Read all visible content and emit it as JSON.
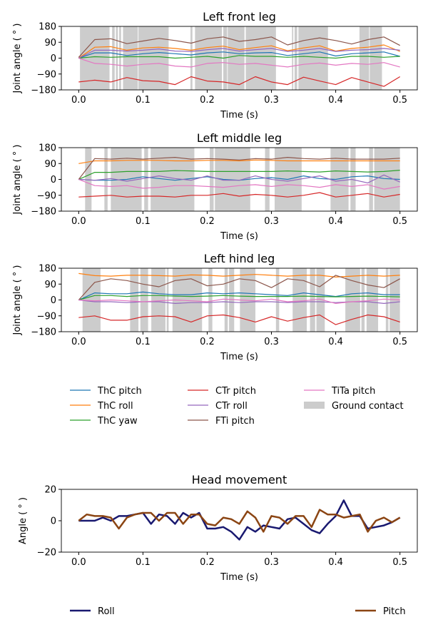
{
  "chart_data": [
    {
      "type": "line",
      "title": "Left front leg",
      "xlabel": "Time (s)",
      "ylabel": "Joint angle ( ° )",
      "xlim": [
        -0.027,
        0.527
      ],
      "ylim": [
        -180,
        180
      ],
      "xticks": [
        "0.0",
        "0.1",
        "0.2",
        "0.3",
        "0.4",
        "0.5"
      ],
      "yticks": [
        "180",
        "90",
        "0",
        "−90",
        "−180"
      ],
      "x": [
        0,
        0.025,
        0.05,
        0.075,
        0.1,
        0.125,
        0.15,
        0.175,
        0.2,
        0.225,
        0.25,
        0.275,
        0.3,
        0.325,
        0.35,
        0.375,
        0.4,
        0.425,
        0.45,
        0.475,
        0.5
      ],
      "series": [
        {
          "name": "ThC pitch",
          "values": [
            0,
            30,
            30,
            15,
            25,
            32,
            25,
            18,
            30,
            35,
            25,
            30,
            32,
            15,
            25,
            35,
            12,
            25,
            30,
            35,
            10
          ]
        },
        {
          "name": "ThC roll",
          "values": [
            0,
            62,
            65,
            45,
            58,
            62,
            55,
            45,
            60,
            68,
            48,
            60,
            70,
            42,
            58,
            70,
            40,
            55,
            62,
            75,
            38
          ]
        },
        {
          "name": "ThC yaw",
          "values": [
            0,
            8,
            5,
            8,
            8,
            8,
            0,
            5,
            10,
            0,
            15,
            10,
            10,
            5,
            10,
            5,
            0,
            10,
            10,
            5,
            10
          ]
        },
        {
          "name": "CTr pitch",
          "values": [
            -135,
            -125,
            -135,
            -110,
            -128,
            -132,
            -150,
            -105,
            -130,
            -135,
            -150,
            -105,
            -135,
            -150,
            -108,
            -130,
            -150,
            -110,
            -135,
            -160,
            -105
          ]
        },
        {
          "name": "CTr roll",
          "values": [
            0,
            45,
            45,
            40,
            45,
            52,
            40,
            38,
            48,
            55,
            40,
            48,
            55,
            38,
            45,
            55,
            38,
            45,
            48,
            55,
            45
          ]
        },
        {
          "name": "FTi pitch",
          "values": [
            5,
            105,
            110,
            82,
            97,
            112,
            100,
            85,
            110,
            120,
            95,
            105,
            120,
            75,
            100,
            115,
            100,
            80,
            105,
            120,
            72
          ]
        },
        {
          "name": "TiTa pitch",
          "values": [
            0,
            -30,
            -35,
            -45,
            -35,
            -30,
            -45,
            -50,
            -30,
            -25,
            -35,
            -30,
            -40,
            -50,
            -35,
            -28,
            -40,
            -30,
            -35,
            -25,
            -50
          ]
        }
      ],
      "ground_contact": [
        [
          0.002,
          0.048
        ],
        [
          0.052,
          0.056
        ],
        [
          0.058,
          0.061
        ],
        [
          0.063,
          0.066
        ],
        [
          0.069,
          0.092
        ],
        [
          0.093,
          0.14
        ],
        [
          0.174,
          0.177
        ],
        [
          0.181,
          0.223
        ],
        [
          0.225,
          0.231
        ],
        [
          0.232,
          0.258
        ],
        [
          0.26,
          0.307
        ],
        [
          0.332,
          0.334
        ],
        [
          0.336,
          0.34
        ],
        [
          0.342,
          0.388
        ],
        [
          0.437,
          0.452
        ],
        [
          0.453,
          0.472
        ]
      ]
    },
    {
      "type": "line",
      "title": "Left middle leg",
      "xlabel": "Time (s)",
      "ylabel": "Joint angle ( ° )",
      "xlim": [
        -0.027,
        0.527
      ],
      "ylim": [
        -180,
        180
      ],
      "xticks": [
        "0.0",
        "0.1",
        "0.2",
        "0.3",
        "0.4",
        "0.5"
      ],
      "yticks": [
        "180",
        "90",
        "0",
        "−90",
        "−180"
      ],
      "x": [
        0,
        0.025,
        0.05,
        0.075,
        0.1,
        0.125,
        0.15,
        0.175,
        0.2,
        0.225,
        0.25,
        0.275,
        0.3,
        0.325,
        0.35,
        0.375,
        0.4,
        0.425,
        0.45,
        0.475,
        0.5
      ],
      "series": [
        {
          "name": "ThC pitch",
          "values": [
            0,
            -5,
            -5,
            0,
            15,
            5,
            -5,
            5,
            15,
            0,
            -5,
            5,
            10,
            0,
            20,
            5,
            0,
            15,
            20,
            5,
            0
          ]
        },
        {
          "name": "ThC roll",
          "values": [
            90,
            105,
            105,
            108,
            108,
            108,
            105,
            105,
            108,
            108,
            105,
            110,
            108,
            105,
            105,
            105,
            105,
            105,
            105,
            105,
            105
          ]
        },
        {
          "name": "ThC yaw",
          "values": [
            0,
            40,
            40,
            45,
            45,
            45,
            50,
            48,
            45,
            45,
            45,
            45,
            45,
            48,
            45,
            42,
            48,
            45,
            42,
            45,
            52
          ]
        },
        {
          "name": "CTr pitch",
          "values": [
            -100,
            -95,
            -90,
            -100,
            -95,
            -95,
            -100,
            -90,
            -90,
            -80,
            -95,
            -85,
            -90,
            -100,
            -90,
            -75,
            -100,
            -90,
            -80,
            -100,
            -85
          ]
        },
        {
          "name": "CTr roll",
          "values": [
            0,
            -5,
            5,
            -10,
            5,
            20,
            5,
            -5,
            20,
            -5,
            -5,
            20,
            0,
            -10,
            5,
            20,
            -10,
            0,
            -20,
            25,
            -15
          ]
        },
        {
          "name": "FTi pitch",
          "values": [
            0,
            118,
            115,
            120,
            115,
            120,
            125,
            115,
            118,
            115,
            110,
            118,
            115,
            125,
            118,
            115,
            120,
            115,
            115,
            115,
            120
          ]
        },
        {
          "name": "TiTa pitch",
          "values": [
            0,
            -35,
            -40,
            -35,
            -50,
            -45,
            -35,
            -35,
            -40,
            -45,
            -35,
            -30,
            -40,
            -30,
            -35,
            -45,
            -30,
            -40,
            -30,
            -55,
            -40
          ]
        }
      ],
      "ground_contact": [
        [
          0.01,
          0.02
        ],
        [
          0.04,
          0.045
        ],
        [
          0.05,
          0.098
        ],
        [
          0.102,
          0.108
        ],
        [
          0.112,
          0.18
        ],
        [
          0.204,
          0.21
        ],
        [
          0.212,
          0.267
        ],
        [
          0.29,
          0.297
        ],
        [
          0.305,
          0.347
        ],
        [
          0.392,
          0.42
        ],
        [
          0.423,
          0.431
        ],
        [
          0.452,
          0.458
        ],
        [
          0.46,
          0.5
        ]
      ]
    },
    {
      "type": "line",
      "title": "Left hind leg",
      "xlabel": "Time (s)",
      "ylabel": "Joint angle ( ° )",
      "xlim": [
        -0.027,
        0.527
      ],
      "ylim": [
        -180,
        180
      ],
      "xticks": [
        "0.0",
        "0.1",
        "0.2",
        "0.3",
        "0.4",
        "0.5"
      ],
      "yticks": [
        "180",
        "90",
        "0",
        "−90",
        "−180"
      ],
      "x": [
        0,
        0.025,
        0.05,
        0.075,
        0.1,
        0.125,
        0.15,
        0.175,
        0.2,
        0.225,
        0.25,
        0.275,
        0.3,
        0.325,
        0.35,
        0.375,
        0.4,
        0.425,
        0.45,
        0.475,
        0.5
      ],
      "series": [
        {
          "name": "ThC pitch",
          "values": [
            0,
            40,
            35,
            35,
            45,
            35,
            30,
            30,
            40,
            35,
            40,
            35,
            30,
            25,
            40,
            30,
            20,
            35,
            40,
            30,
            30
          ]
        },
        {
          "name": "ThC roll",
          "values": [
            150,
            138,
            135,
            140,
            140,
            138,
            135,
            142,
            140,
            135,
            140,
            145,
            140,
            135,
            140,
            140,
            130,
            135,
            140,
            135,
            140
          ]
        },
        {
          "name": "ThC yaw",
          "values": [
            0,
            25,
            25,
            20,
            25,
            25,
            22,
            20,
            22,
            25,
            22,
            20,
            20,
            20,
            22,
            20,
            18,
            20,
            22,
            20,
            18
          ]
        },
        {
          "name": "CTr pitch",
          "values": [
            -100,
            -90,
            -115,
            -115,
            -95,
            -90,
            -95,
            -125,
            -90,
            -85,
            -100,
            -125,
            -95,
            -120,
            -100,
            -85,
            -140,
            -110,
            -85,
            -95,
            -125
          ]
        },
        {
          "name": "CTr roll",
          "values": [
            0,
            -10,
            -10,
            -15,
            -10,
            -10,
            -20,
            -15,
            -15,
            -10,
            -15,
            -10,
            -10,
            -15,
            -10,
            -10,
            -15,
            -10,
            -10,
            -20,
            -10
          ]
        },
        {
          "name": "FTi pitch",
          "values": [
            0,
            100,
            120,
            110,
            90,
            75,
            110,
            120,
            80,
            90,
            120,
            110,
            70,
            120,
            110,
            75,
            140,
            110,
            85,
            70,
            120
          ]
        },
        {
          "name": "TiTa pitch",
          "values": [
            0,
            -5,
            0,
            -5,
            -10,
            -5,
            0,
            -5,
            -10,
            5,
            0,
            -5,
            5,
            -10,
            -5,
            5,
            -20,
            -10,
            -5,
            5,
            0
          ]
        }
      ],
      "ground_contact": [
        [
          0.006,
          0.034
        ],
        [
          0.08,
          0.093
        ],
        [
          0.096,
          0.108
        ],
        [
          0.113,
          0.135
        ],
        [
          0.137,
          0.14
        ],
        [
          0.146,
          0.192
        ],
        [
          0.202,
          0.208
        ],
        [
          0.227,
          0.232
        ],
        [
          0.234,
          0.242
        ],
        [
          0.251,
          0.275
        ],
        [
          0.307,
          0.312
        ],
        [
          0.333,
          0.355
        ],
        [
          0.36,
          0.368
        ],
        [
          0.37,
          0.383
        ],
        [
          0.415,
          0.438
        ],
        [
          0.44,
          0.445
        ],
        [
          0.448,
          0.466
        ],
        [
          0.478,
          0.482
        ],
        [
          0.484,
          0.5
        ]
      ]
    },
    {
      "type": "line",
      "title": "Head movement",
      "xlabel": "Time (s)",
      "ylabel": "Angle ( ° )",
      "xlim": [
        -0.027,
        0.527
      ],
      "ylim": [
        -20,
        20
      ],
      "xticks": [
        "0.0",
        "0.1",
        "0.2",
        "0.3",
        "0.4",
        "0.5"
      ],
      "yticks": [
        "20",
        "0",
        "−20"
      ],
      "x": [
        0,
        0.0125,
        0.025,
        0.0375,
        0.05,
        0.0625,
        0.075,
        0.0875,
        0.1,
        0.1125,
        0.125,
        0.1375,
        0.15,
        0.1625,
        0.175,
        0.1875,
        0.2,
        0.2125,
        0.225,
        0.2375,
        0.25,
        0.2625,
        0.275,
        0.2875,
        0.3,
        0.3125,
        0.325,
        0.3375,
        0.35,
        0.3625,
        0.375,
        0.3875,
        0.4,
        0.4125,
        0.425,
        0.4375,
        0.45,
        0.4625,
        0.475,
        0.4875,
        0.5
      ],
      "series": [
        {
          "name": "Roll",
          "values": [
            0,
            0,
            0,
            2,
            0,
            3,
            3,
            4,
            5,
            -2,
            4,
            3,
            -2,
            5,
            2,
            5,
            -5,
            -5,
            -4,
            -7,
            -12,
            -4,
            -7,
            -3,
            -4,
            -5,
            1,
            2,
            -2,
            -6,
            -8,
            -2,
            3,
            13,
            3,
            3,
            -5,
            -4,
            -3,
            -1,
            2
          ]
        },
        {
          "name": "Pitch",
          "values": [
            0,
            4,
            3,
            3,
            2,
            -5,
            2,
            4,
            5,
            5,
            0,
            5,
            5,
            -2,
            4,
            4,
            -2,
            -3,
            2,
            1,
            -2,
            6,
            2,
            -7,
            3,
            2,
            -2,
            3,
            3,
            -4,
            7,
            4,
            4,
            2,
            3,
            4,
            -7,
            0,
            2,
            -1,
            2
          ]
        }
      ]
    }
  ],
  "legend_legs": [
    "ThC pitch",
    "ThC roll",
    "ThC yaw",
    "CTr pitch",
    "CTr roll",
    "FTi pitch",
    "TiTa pitch",
    "Ground contact"
  ],
  "legend_head": [
    "Roll",
    "Pitch"
  ],
  "colors": {
    "ThC pitch": "#1f77b4",
    "ThC roll": "#ff7f0e",
    "ThC yaw": "#2ca02c",
    "CTr pitch": "#d62728",
    "CTr roll": "#9467bd",
    "FTi pitch": "#8c564b",
    "TiTa pitch": "#e377c2",
    "Ground contact": "#cccccc",
    "Roll": "#191970",
    "Pitch": "#8b4513"
  }
}
